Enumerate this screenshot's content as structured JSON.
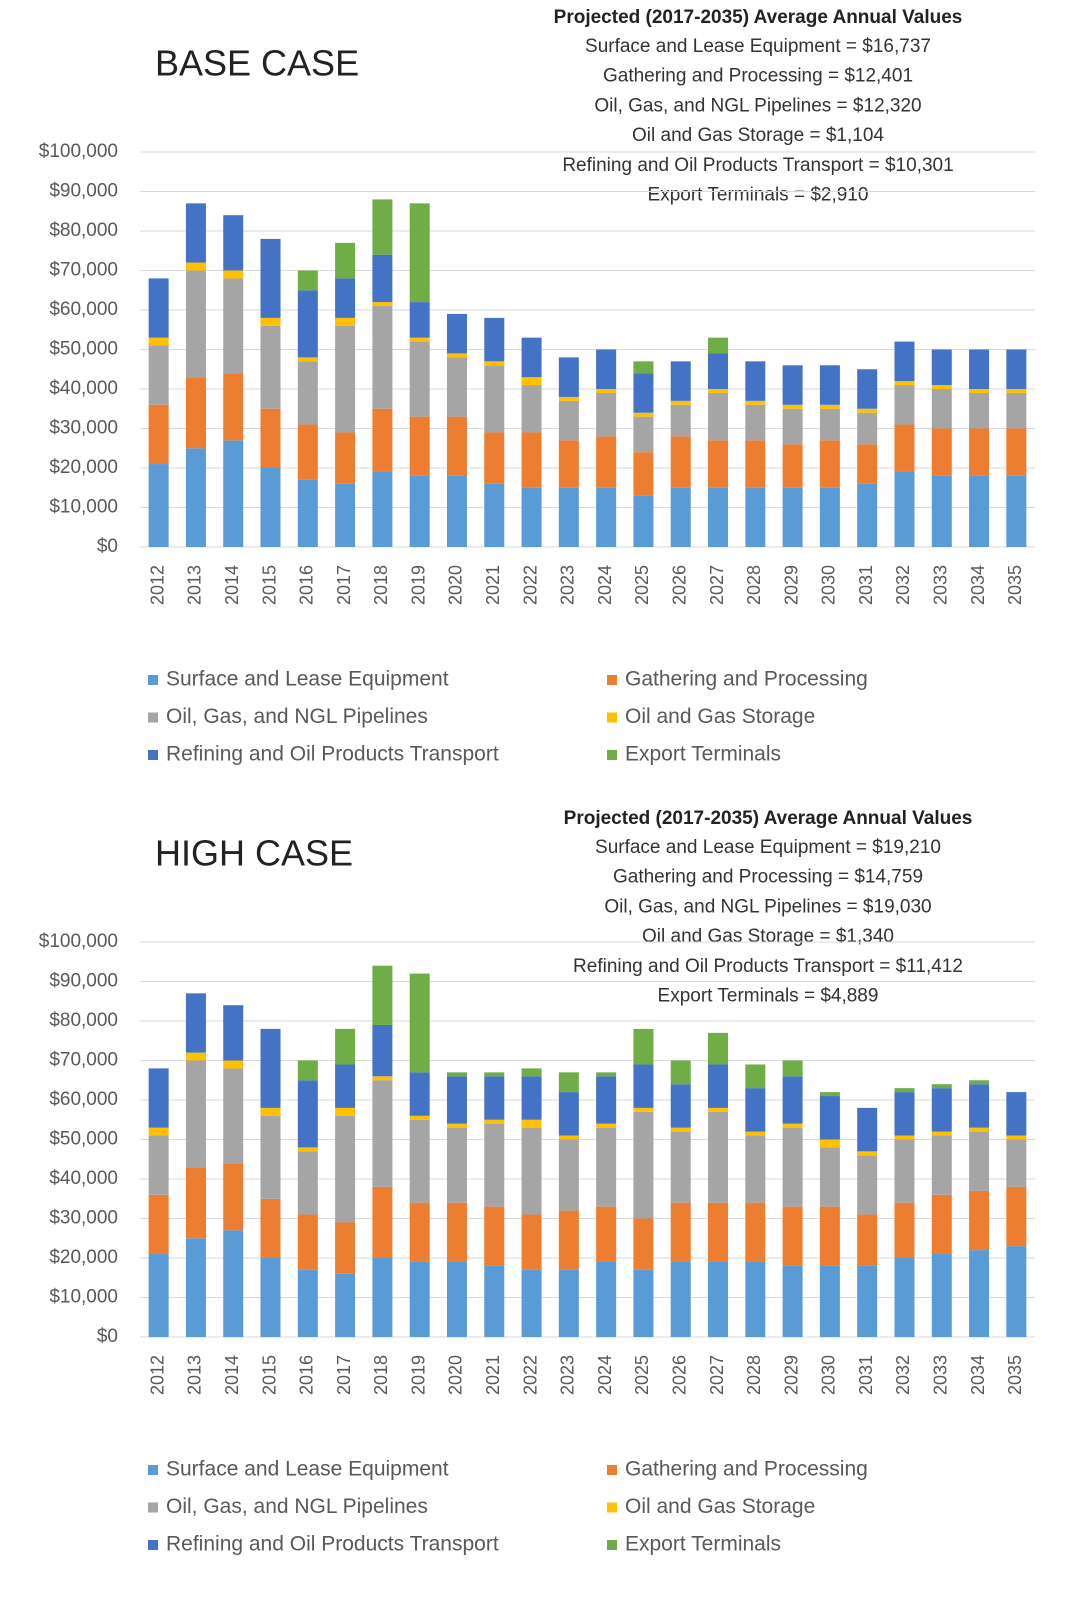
{
  "chart_data": [
    {
      "type": "bar",
      "stacked": true,
      "title": "BASE CASE",
      "annotation": {
        "title": "Projected (2017-2035) Average Annual Values",
        "lines": [
          "Surface and Lease Equipment = $16,737",
          "Gathering and Processing = $12,401",
          "Oil, Gas, and NGL Pipelines = $12,320",
          "Oil and Gas Storage  = $1,104",
          "Refining and Oil Products Transport = $10,301",
          "Export Terminals = $2,910"
        ]
      },
      "categories": [
        "2012",
        "2013",
        "2014",
        "2015",
        "2016",
        "2017",
        "2018",
        "2019",
        "2020",
        "2021",
        "2022",
        "2023",
        "2024",
        "2025",
        "2026",
        "2027",
        "2028",
        "2029",
        "2030",
        "2031",
        "2032",
        "2033",
        "2034",
        "2035"
      ],
      "series": [
        {
          "name": "Surface and Lease Equipment",
          "color": "#5b9bd5",
          "values": [
            21000,
            25000,
            27000,
            20000,
            17000,
            16000,
            19000,
            18000,
            18000,
            16000,
            15000,
            15000,
            15000,
            13000,
            15000,
            15000,
            15000,
            15000,
            15000,
            16000,
            19000,
            18000,
            18000,
            18000
          ]
        },
        {
          "name": "Gathering and Processing",
          "color": "#ed7d31",
          "values": [
            15000,
            18000,
            17000,
            15000,
            14000,
            13000,
            16000,
            15000,
            15000,
            13000,
            14000,
            12000,
            13000,
            11000,
            13000,
            12000,
            12000,
            11000,
            12000,
            10000,
            12000,
            12000,
            12000,
            12000
          ]
        },
        {
          "name": "Oil, Gas, and NGL Pipelines",
          "color": "#a5a5a5",
          "values": [
            15000,
            27000,
            24000,
            21000,
            16000,
            27000,
            26000,
            19000,
            15000,
            17000,
            12000,
            10000,
            11000,
            9000,
            8000,
            12000,
            9000,
            9000,
            8000,
            8000,
            10000,
            10000,
            9000,
            9000
          ]
        },
        {
          "name": "Oil and Gas Storage",
          "color": "#ffc000",
          "values": [
            2000,
            2000,
            2000,
            2000,
            1000,
            2000,
            1000,
            1000,
            1000,
            1000,
            2000,
            1000,
            1000,
            1000,
            1000,
            1000,
            1000,
            1000,
            1000,
            1000,
            1000,
            1000,
            1000,
            1000
          ]
        },
        {
          "name": "Refining and Oil Products Transport",
          "color": "#4472c4",
          "values": [
            15000,
            15000,
            14000,
            20000,
            17000,
            10000,
            12000,
            9000,
            10000,
            11000,
            10000,
            10000,
            10000,
            10000,
            10000,
            9000,
            10000,
            10000,
            10000,
            10000,
            10000,
            9000,
            10000,
            10000
          ]
        },
        {
          "name": "Export Terminals",
          "color": "#70ad47",
          "values": [
            0,
            0,
            0,
            0,
            5000,
            9000,
            14000,
            25000,
            0,
            0,
            0,
            0,
            0,
            3000,
            0,
            4000,
            0,
            0,
            0,
            0,
            0,
            0,
            0,
            0
          ]
        }
      ],
      "ylim": [
        0,
        100000
      ],
      "yticks": [
        {
          "value": 0,
          "label": "$0"
        },
        {
          "value": 10000,
          "label": "$10,000"
        },
        {
          "value": 20000,
          "label": "$20,000"
        },
        {
          "value": 30000,
          "label": "$30,000"
        },
        {
          "value": 40000,
          "label": "$40,000"
        },
        {
          "value": 50000,
          "label": "$50,000"
        },
        {
          "value": 60000,
          "label": "$60,000"
        },
        {
          "value": 70000,
          "label": "$70,000"
        },
        {
          "value": 80000,
          "label": "$80,000"
        },
        {
          "value": 90000,
          "label": "$90,000"
        },
        {
          "value": 100000,
          "label": "$100,000"
        }
      ],
      "grid": true,
      "legend": "bottom"
    },
    {
      "type": "bar",
      "stacked": true,
      "title": "HIGH CASE",
      "annotation": {
        "title": "Projected (2017-2035) Average Annual Values",
        "lines": [
          "Surface and Lease Equipment = $19,210",
          "Gathering and Processing = $14,759",
          "Oil, Gas, and NGL Pipelines = $19,030",
          "Oil and Gas Storage  = $1,340",
          "Refining and Oil Products Transport = $11,412",
          "Export Terminals = $4,889"
        ]
      },
      "categories": [
        "2012",
        "2013",
        "2014",
        "2015",
        "2016",
        "2017",
        "2018",
        "2019",
        "2020",
        "2021",
        "2022",
        "2023",
        "2024",
        "2025",
        "2026",
        "2027",
        "2028",
        "2029",
        "2030",
        "2031",
        "2032",
        "2033",
        "2034",
        "2035"
      ],
      "series": [
        {
          "name": "Surface and Lease Equipment",
          "color": "#5b9bd5",
          "values": [
            21000,
            25000,
            27000,
            20000,
            17000,
            16000,
            20000,
            19000,
            19000,
            18000,
            17000,
            17000,
            19000,
            17000,
            19000,
            19000,
            19000,
            18000,
            18000,
            18000,
            20000,
            21000,
            22000,
            23000
          ]
        },
        {
          "name": "Gathering and Processing",
          "color": "#ed7d31",
          "values": [
            15000,
            18000,
            17000,
            15000,
            14000,
            13000,
            18000,
            15000,
            15000,
            15000,
            14000,
            15000,
            14000,
            13000,
            15000,
            15000,
            15000,
            15000,
            15000,
            13000,
            14000,
            15000,
            15000,
            15000
          ]
        },
        {
          "name": "Oil, Gas, and NGL Pipelines",
          "color": "#a5a5a5",
          "values": [
            15000,
            27000,
            24000,
            21000,
            16000,
            27000,
            27000,
            21000,
            19000,
            21000,
            22000,
            18000,
            20000,
            27000,
            18000,
            23000,
            17000,
            20000,
            15000,
            15000,
            16000,
            15000,
            15000,
            12000
          ]
        },
        {
          "name": "Oil and Gas Storage",
          "color": "#ffc000",
          "values": [
            2000,
            2000,
            2000,
            2000,
            1000,
            2000,
            1000,
            1000,
            1000,
            1000,
            2000,
            1000,
            1000,
            1000,
            1000,
            1000,
            1000,
            1000,
            2000,
            1000,
            1000,
            1000,
            1000,
            1000
          ]
        },
        {
          "name": "Refining and Oil Products Transport",
          "color": "#4472c4",
          "values": [
            15000,
            15000,
            14000,
            20000,
            17000,
            11000,
            13000,
            11000,
            12000,
            11000,
            11000,
            11000,
            12000,
            11000,
            11000,
            11000,
            11000,
            12000,
            11000,
            11000,
            11000,
            11000,
            11000,
            11000
          ]
        },
        {
          "name": "Export Terminals",
          "color": "#70ad47",
          "values": [
            0,
            0,
            0,
            0,
            5000,
            9000,
            15000,
            25000,
            1000,
            1000,
            2000,
            5000,
            1000,
            9000,
            6000,
            8000,
            6000,
            4000,
            1000,
            0,
            1000,
            1000,
            1000,
            0
          ]
        }
      ],
      "ylim": [
        0,
        100000
      ],
      "yticks": [
        {
          "value": 0,
          "label": "$0"
        },
        {
          "value": 10000,
          "label": "$10,000"
        },
        {
          "value": 20000,
          "label": "$20,000"
        },
        {
          "value": 30000,
          "label": "$30,000"
        },
        {
          "value": 40000,
          "label": "$40,000"
        },
        {
          "value": 50000,
          "label": "$50,000"
        },
        {
          "value": 60000,
          "label": "$60,000"
        },
        {
          "value": 70000,
          "label": "$70,000"
        },
        {
          "value": 80000,
          "label": "$80,000"
        },
        {
          "value": 90000,
          "label": "$90,000"
        },
        {
          "value": 100000,
          "label": "$100,000"
        }
      ],
      "grid": true,
      "legend": "bottom"
    }
  ]
}
